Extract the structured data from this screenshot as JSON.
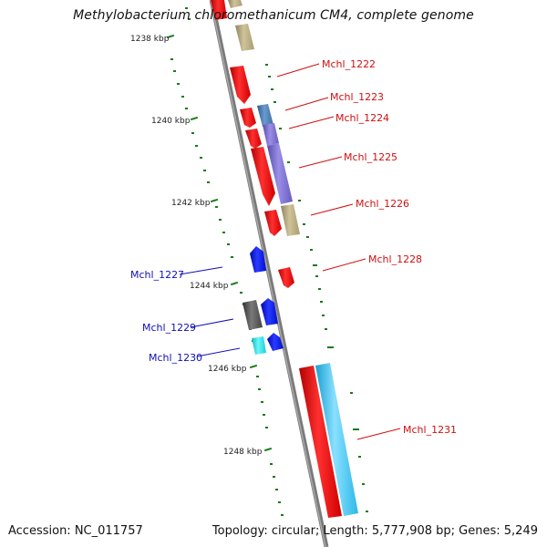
{
  "title": "Methylobacterium chloromethanicum CM4, complete genome",
  "footer": {
    "accession": "Accession: NC_011757",
    "stats": "Topology: circular; Length: 5,777,908 bp; Genes: 5,249"
  },
  "colors": {
    "red": "#ff0000",
    "khaki": "#b5a97e",
    "steel_blue": "#4a7bb0",
    "purple": "#7c6fd0",
    "blue": "#0a18e8",
    "dark_gray": "#555555",
    "cyan": "#22e8ee",
    "sky": "#3cc8f0",
    "tick_green": "#1a7a1a",
    "label_red": "#d01010",
    "label_blue": "#1010b8"
  },
  "ticks": [
    {
      "label": "1238 kbp"
    },
    {
      "label": "1240 kbp"
    },
    {
      "label": "1242 kbp"
    },
    {
      "label": "1244 kbp"
    },
    {
      "label": "1246 kbp"
    },
    {
      "label": "1248 kbp"
    }
  ],
  "gene_labels": [
    {
      "id": "Mchl_1222",
      "strand": "forward"
    },
    {
      "id": "Mchl_1223",
      "strand": "forward"
    },
    {
      "id": "Mchl_1224",
      "strand": "forward"
    },
    {
      "id": "Mchl_1225",
      "strand": "forward"
    },
    {
      "id": "Mchl_1226",
      "strand": "forward"
    },
    {
      "id": "Mchl_1227",
      "strand": "reverse"
    },
    {
      "id": "Mchl_1228",
      "strand": "forward"
    },
    {
      "id": "Mchl_1229",
      "strand": "reverse"
    },
    {
      "id": "Mchl_1230",
      "strand": "reverse"
    },
    {
      "id": "Mchl_1231",
      "strand": "forward"
    }
  ]
}
